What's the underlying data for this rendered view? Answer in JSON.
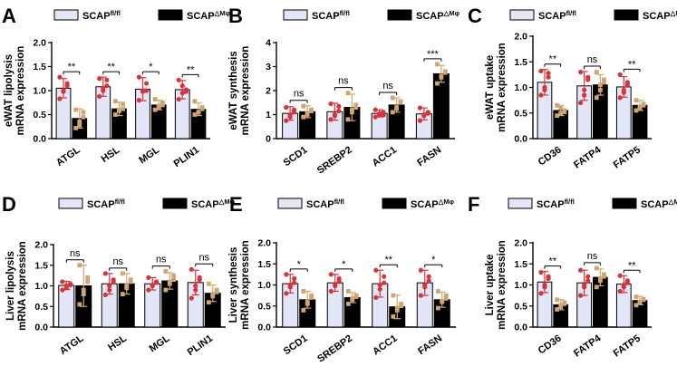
{
  "colors": {
    "control_fill": "#e2e6f6",
    "ko_fill": "#000000",
    "control_dot": "#d9333a",
    "ko_dot": "#cfa671"
  },
  "chart_data": [
    {
      "letter": "A",
      "type": "bar",
      "ylabel": [
        "eWAT lipolysis",
        "mRNA expression"
      ],
      "ylim": [
        0,
        2.0
      ],
      "yticks": [
        "0.0",
        "0.5",
        "1.0",
        "1.5",
        "2.0"
      ],
      "categories": [
        "ATGL",
        "HSL",
        "MGL",
        "PLIN1"
      ],
      "series": [
        {
          "name": "SCAP",
          "sup": "fl/fl",
          "values": [
            1.05,
            1.08,
            1.03,
            1.02
          ],
          "err": [
            0.2,
            0.2,
            0.24,
            0.19
          ],
          "points": [
            [
              0.83,
              1.0,
              1.1,
              1.28,
              0.98,
              1.15
            ],
            [
              0.88,
              1.05,
              1.22,
              1.25,
              1.0,
              1.1
            ],
            [
              0.8,
              1.0,
              1.15,
              1.28,
              0.98,
              1.0
            ],
            [
              0.82,
              0.95,
              1.02,
              1.22,
              1.1,
              0.98
            ]
          ]
        },
        {
          "name": "SCAP",
          "sup": "△Mφ",
          "values": [
            0.42,
            0.62,
            0.7,
            0.61
          ],
          "err": [
            0.2,
            0.14,
            0.1,
            0.13
          ],
          "points": [
            [
              0.22,
              0.35,
              0.45,
              0.6,
              0.28,
              0.55
            ],
            [
              0.5,
              0.6,
              0.72,
              0.78,
              0.58,
              0.62
            ],
            [
              0.6,
              0.68,
              0.75,
              0.82,
              0.65,
              0.7
            ],
            [
              0.5,
              0.55,
              0.65,
              0.78,
              0.55,
              0.62
            ]
          ]
        }
      ],
      "sig": [
        "**",
        "**",
        "*",
        "**"
      ]
    },
    {
      "letter": "B",
      "type": "bar",
      "ylabel": [
        "eWAT synthesis",
        "mRNA expression"
      ],
      "ylim": [
        0,
        4
      ],
      "yticks": [
        "0",
        "1",
        "2",
        "3",
        "4"
      ],
      "categories": [
        "SCD1",
        "SREBP2",
        "ACC1",
        "FASN"
      ],
      "series": [
        {
          "name": "SCAP",
          "sup": "fl/fl",
          "values": [
            1.05,
            1.12,
            1.05,
            1.03
          ],
          "err": [
            0.28,
            0.35,
            0.15,
            0.25
          ],
          "points": [
            [
              0.75,
              1.0,
              1.2,
              1.3,
              0.9,
              1.1
            ],
            [
              0.8,
              1.0,
              1.35,
              1.45,
              0.95,
              1.15
            ],
            [
              0.9,
              1.0,
              1.1,
              1.2,
              1.05,
              0.98
            ],
            [
              0.75,
              0.95,
              1.1,
              1.28,
              1.0,
              1.05
            ]
          ]
        },
        {
          "name": "SCAP",
          "sup": "△Mφ",
          "values": [
            1.12,
            1.3,
            1.4,
            2.7
          ],
          "err": [
            0.25,
            0.55,
            0.3,
            0.35
          ],
          "points": [
            [
              0.9,
              1.05,
              1.2,
              1.35,
              1.0,
              1.15
            ],
            [
              0.8,
              1.1,
              1.4,
              1.9,
              1.2,
              1.3
            ],
            [
              1.1,
              1.3,
              1.5,
              1.7,
              1.25,
              1.55
            ],
            [
              2.3,
              2.55,
              2.8,
              3.1,
              2.6,
              2.75
            ]
          ]
        }
      ],
      "sig": [
        "ns",
        "ns",
        "ns",
        "***"
      ]
    },
    {
      "letter": "C",
      "type": "bar",
      "ylabel": [
        "eWAT uptake",
        "mRNA expression"
      ],
      "ylim": [
        0,
        2.0
      ],
      "yticks": [
        "0.0",
        "0.5",
        "1.0",
        "1.5",
        "2.0"
      ],
      "categories": [
        "CD36",
        "FATP4",
        "FATP5"
      ],
      "series": [
        {
          "name": "SCAP",
          "sup": "fl/fl",
          "values": [
            1.1,
            1.03,
            1.01
          ],
          "err": [
            0.25,
            0.28,
            0.2
          ],
          "points": [
            [
              0.85,
              1.0,
              1.2,
              1.32,
              0.95,
              1.28
            ],
            [
              0.7,
              0.95,
              1.15,
              1.3,
              0.85,
              1.2
            ],
            [
              0.8,
              0.95,
              1.1,
              1.25,
              0.9,
              1.05
            ]
          ]
        },
        {
          "name": "SCAP",
          "sup": "△Mφ",
          "values": [
            0.55,
            1.05,
            0.65
          ],
          "err": [
            0.1,
            0.2,
            0.1
          ],
          "points": [
            [
              0.45,
              0.5,
              0.55,
              0.65,
              0.6,
              0.52
            ],
            [
              0.8,
              0.95,
              1.15,
              1.3,
              1.05,
              1.1
            ],
            [
              0.55,
              0.6,
              0.65,
              0.75,
              0.62,
              0.68
            ]
          ]
        }
      ],
      "sig": [
        "**",
        "ns",
        "**"
      ]
    },
    {
      "letter": "D",
      "type": "bar",
      "ylabel": [
        "Liver lipolysis",
        "mRNA expression"
      ],
      "ylim": [
        0,
        2.0
      ],
      "yticks": [
        "0.0",
        "0.5",
        "1.0",
        "1.5",
        "2.0"
      ],
      "categories": [
        "ATGL",
        "HSL",
        "MGL",
        "PLIN1"
      ],
      "series": [
        {
          "name": "SCAP",
          "sup": "fl/fl",
          "values": [
            1.01,
            1.05,
            1.05,
            1.08
          ],
          "err": [
            0.1,
            0.25,
            0.15,
            0.3
          ],
          "points": [
            [
              0.9,
              0.95,
              1.05,
              1.1,
              1.0,
              1.02
            ],
            [
              0.78,
              0.9,
              1.1,
              1.3,
              1.0,
              1.15
            ],
            [
              0.9,
              1.0,
              1.1,
              1.2,
              1.02,
              1.08
            ],
            [
              0.7,
              0.9,
              1.2,
              1.4,
              1.0,
              1.15
            ]
          ]
        },
        {
          "name": "SCAP",
          "sup": "△Mφ",
          "values": [
            1.0,
            1.05,
            1.12,
            0.82
          ],
          "err": [
            0.5,
            0.25,
            0.2,
            0.2
          ],
          "points": [
            [
              0.55,
              0.8,
              1.2,
              1.5,
              0.9,
              1.1
            ],
            [
              0.8,
              1.0,
              1.15,
              1.3,
              0.95,
              1.1
            ],
            [
              0.9,
              1.05,
              1.25,
              1.35,
              1.1,
              1.15
            ],
            [
              0.6,
              0.75,
              0.9,
              1.05,
              0.8,
              0.85
            ]
          ]
        }
      ],
      "sig": [
        "ns",
        "ns",
        "ns",
        "ns"
      ]
    },
    {
      "letter": "E",
      "type": "bar",
      "ylabel": [
        "Liver synthesis",
        "mRNA expression"
      ],
      "ylim": [
        0,
        2.0
      ],
      "yticks": [
        "0.0",
        "0.5",
        "1.0",
        "1.5",
        "2.0"
      ],
      "categories": [
        "SCD1",
        "SREBP2",
        "ACC1",
        "FASN"
      ],
      "series": [
        {
          "name": "SCAP",
          "sup": "fl/fl",
          "values": [
            1.03,
            1.05,
            1.03,
            1.05
          ],
          "err": [
            0.22,
            0.2,
            0.32,
            0.3
          ],
          "points": [
            [
              0.8,
              0.95,
              1.15,
              1.25,
              1.0,
              1.05
            ],
            [
              0.85,
              1.0,
              1.15,
              1.25,
              0.98,
              1.08
            ],
            [
              0.7,
              0.9,
              1.2,
              1.35,
              1.0,
              1.05
            ],
            [
              0.75,
              0.95,
              1.2,
              1.35,
              1.0,
              1.1
            ]
          ]
        },
        {
          "name": "SCAP",
          "sup": "△Mφ",
          "values": [
            0.65,
            0.7,
            0.48,
            0.65
          ],
          "err": [
            0.2,
            0.12,
            0.28,
            0.18
          ],
          "points": [
            [
              0.4,
              0.55,
              0.7,
              0.85,
              0.6,
              0.75
            ],
            [
              0.55,
              0.65,
              0.75,
              0.85,
              0.68,
              0.72
            ],
            [
              0.25,
              0.4,
              0.55,
              0.75,
              0.45,
              0.5
            ],
            [
              0.45,
              0.6,
              0.75,
              0.85,
              0.62,
              0.68
            ]
          ]
        }
      ],
      "sig": [
        "*",
        "*",
        "**",
        "*"
      ]
    },
    {
      "letter": "F",
      "type": "bar",
      "ylabel": [
        "Liver uptake",
        "mRNA expression"
      ],
      "ylim": [
        0,
        2.0
      ],
      "yticks": [
        "0.0",
        "0.5",
        "1.0",
        "1.5",
        "2.0"
      ],
      "categories": [
        "CD36",
        "FATP4",
        "FATP5"
      ],
      "series": [
        {
          "name": "SCAP",
          "sup": "fl/fl",
          "values": [
            1.07,
            1.05,
            1.02
          ],
          "err": [
            0.25,
            0.3,
            0.2
          ],
          "points": [
            [
              0.8,
              0.95,
              1.2,
              1.3,
              1.0,
              1.15
            ],
            [
              0.75,
              0.95,
              1.2,
              1.35,
              1.0,
              1.1
            ],
            [
              0.85,
              0.95,
              1.1,
              1.22,
              1.0,
              1.05
            ]
          ]
        },
        {
          "name": "SCAP",
          "sup": "△Mφ",
          "values": [
            0.53,
            1.18,
            0.63
          ],
          "err": [
            0.12,
            0.2,
            0.1
          ],
          "points": [
            [
              0.42,
              0.48,
              0.55,
              0.65,
              0.52,
              0.58
            ],
            [
              0.95,
              1.1,
              1.25,
              1.4,
              1.15,
              1.2
            ],
            [
              0.52,
              0.58,
              0.65,
              0.72,
              0.6,
              0.66
            ]
          ]
        }
      ],
      "sig": [
        "**",
        "ns",
        "**"
      ]
    }
  ]
}
